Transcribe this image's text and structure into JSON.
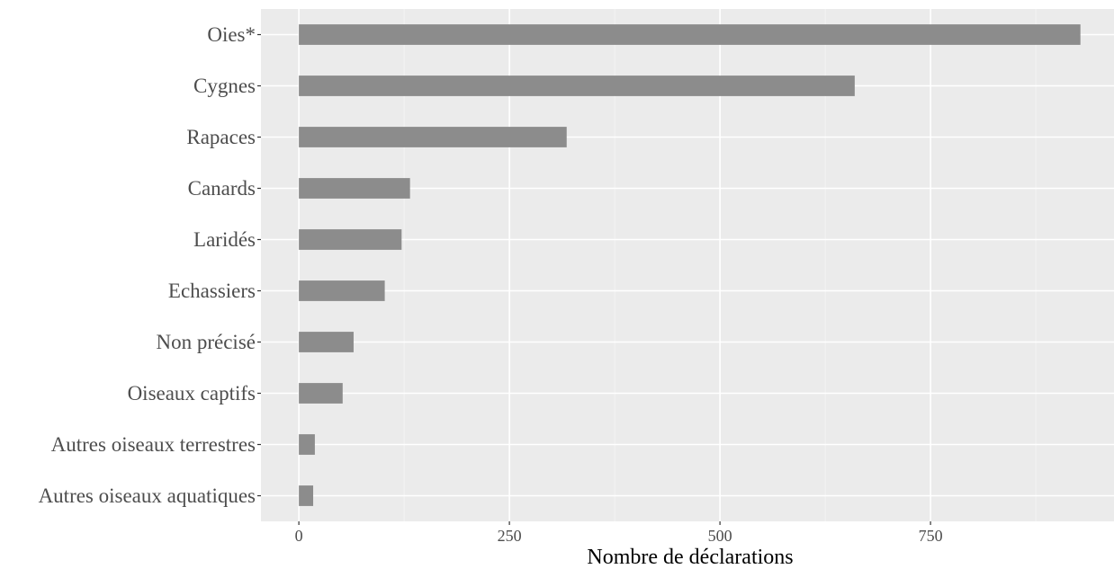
{
  "chart_data": {
    "type": "bar",
    "orientation": "horizontal",
    "categories": [
      "Oies*",
      "Cygnes",
      "Rapaces",
      "Canards",
      "Laridés",
      "Echassiers",
      "Non précisé",
      "Oiseaux captifs",
      "Autres oiseaux terrestres",
      "Autres oiseaux aquatiques"
    ],
    "values": [
      928,
      660,
      318,
      132,
      122,
      102,
      65,
      52,
      19,
      17
    ],
    "xlabel": "Nombre de déclarations",
    "ylabel": "",
    "xlim": [
      -45,
      970
    ],
    "xticks": [
      0,
      250,
      500,
      750
    ],
    "xtick_labels": [
      "0",
      "250",
      "500",
      "750"
    ],
    "grid": true,
    "legend": "none",
    "colors": {
      "bar": "#8c8c8c",
      "panel": "#ebebeb",
      "grid_major": "#ffffff",
      "grid_minor": "#f5f5f5",
      "text": "#4d4d4d"
    }
  }
}
